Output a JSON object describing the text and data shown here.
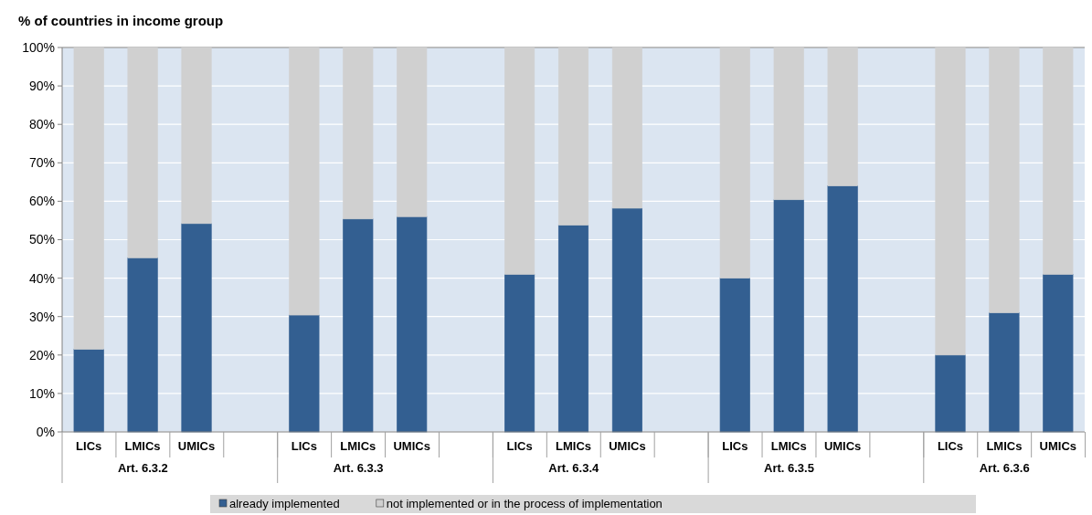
{
  "chart_data": {
    "type": "bar",
    "title": "% of countries in income group",
    "stacked": true,
    "categories": [
      "LICs",
      "LMICs",
      "UMICs",
      null,
      "LICs",
      "LMICs",
      "UMICs",
      null,
      "LICs",
      "LMICs",
      "UMICs",
      null,
      "LICs",
      "LMICs",
      "UMICs",
      null,
      "LICs",
      "LMICs",
      "UMICs"
    ],
    "series": [
      {
        "name": "already implemented",
        "color": "#335f91",
        "values": [
          21.5,
          45.3,
          54.2,
          null,
          30.4,
          55.4,
          56,
          null,
          41,
          53.8,
          58.2,
          null,
          40,
          60.4,
          64,
          null,
          20,
          31,
          41
        ]
      },
      {
        "name": "not implemented or in the process of implementation",
        "color": "#d0d0d0",
        "values": [
          78.5,
          54.7,
          45.8,
          null,
          69.6,
          44.6,
          44,
          null,
          59,
          46.2,
          41.8,
          null,
          60,
          39.6,
          36,
          null,
          80,
          69,
          59
        ]
      }
    ],
    "ylim": [
      0,
      100
    ],
    "yticks": [
      {
        "value": 0,
        "label": "0%"
      },
      {
        "value": 10,
        "label": "10%"
      },
      {
        "value": 20,
        "label": "20%"
      },
      {
        "value": 30,
        "label": "30%"
      },
      {
        "value": 40,
        "label": "40%"
      },
      {
        "value": 50,
        "label": "50%"
      },
      {
        "value": 60,
        "label": "60%"
      },
      {
        "value": 70,
        "label": "70%"
      },
      {
        "value": 80,
        "label": "80%"
      },
      {
        "value": 90,
        "label": "90%"
      },
      {
        "value": 100,
        "label": "100%"
      }
    ],
    "grid": "y",
    "legend": "bottom",
    "annotations": [
      "Art. 6.3.2",
      "Art. 6.3.3",
      "Art. 6.3.4",
      "Art. 6.3.5",
      "Art. 6.3.6"
    ]
  }
}
